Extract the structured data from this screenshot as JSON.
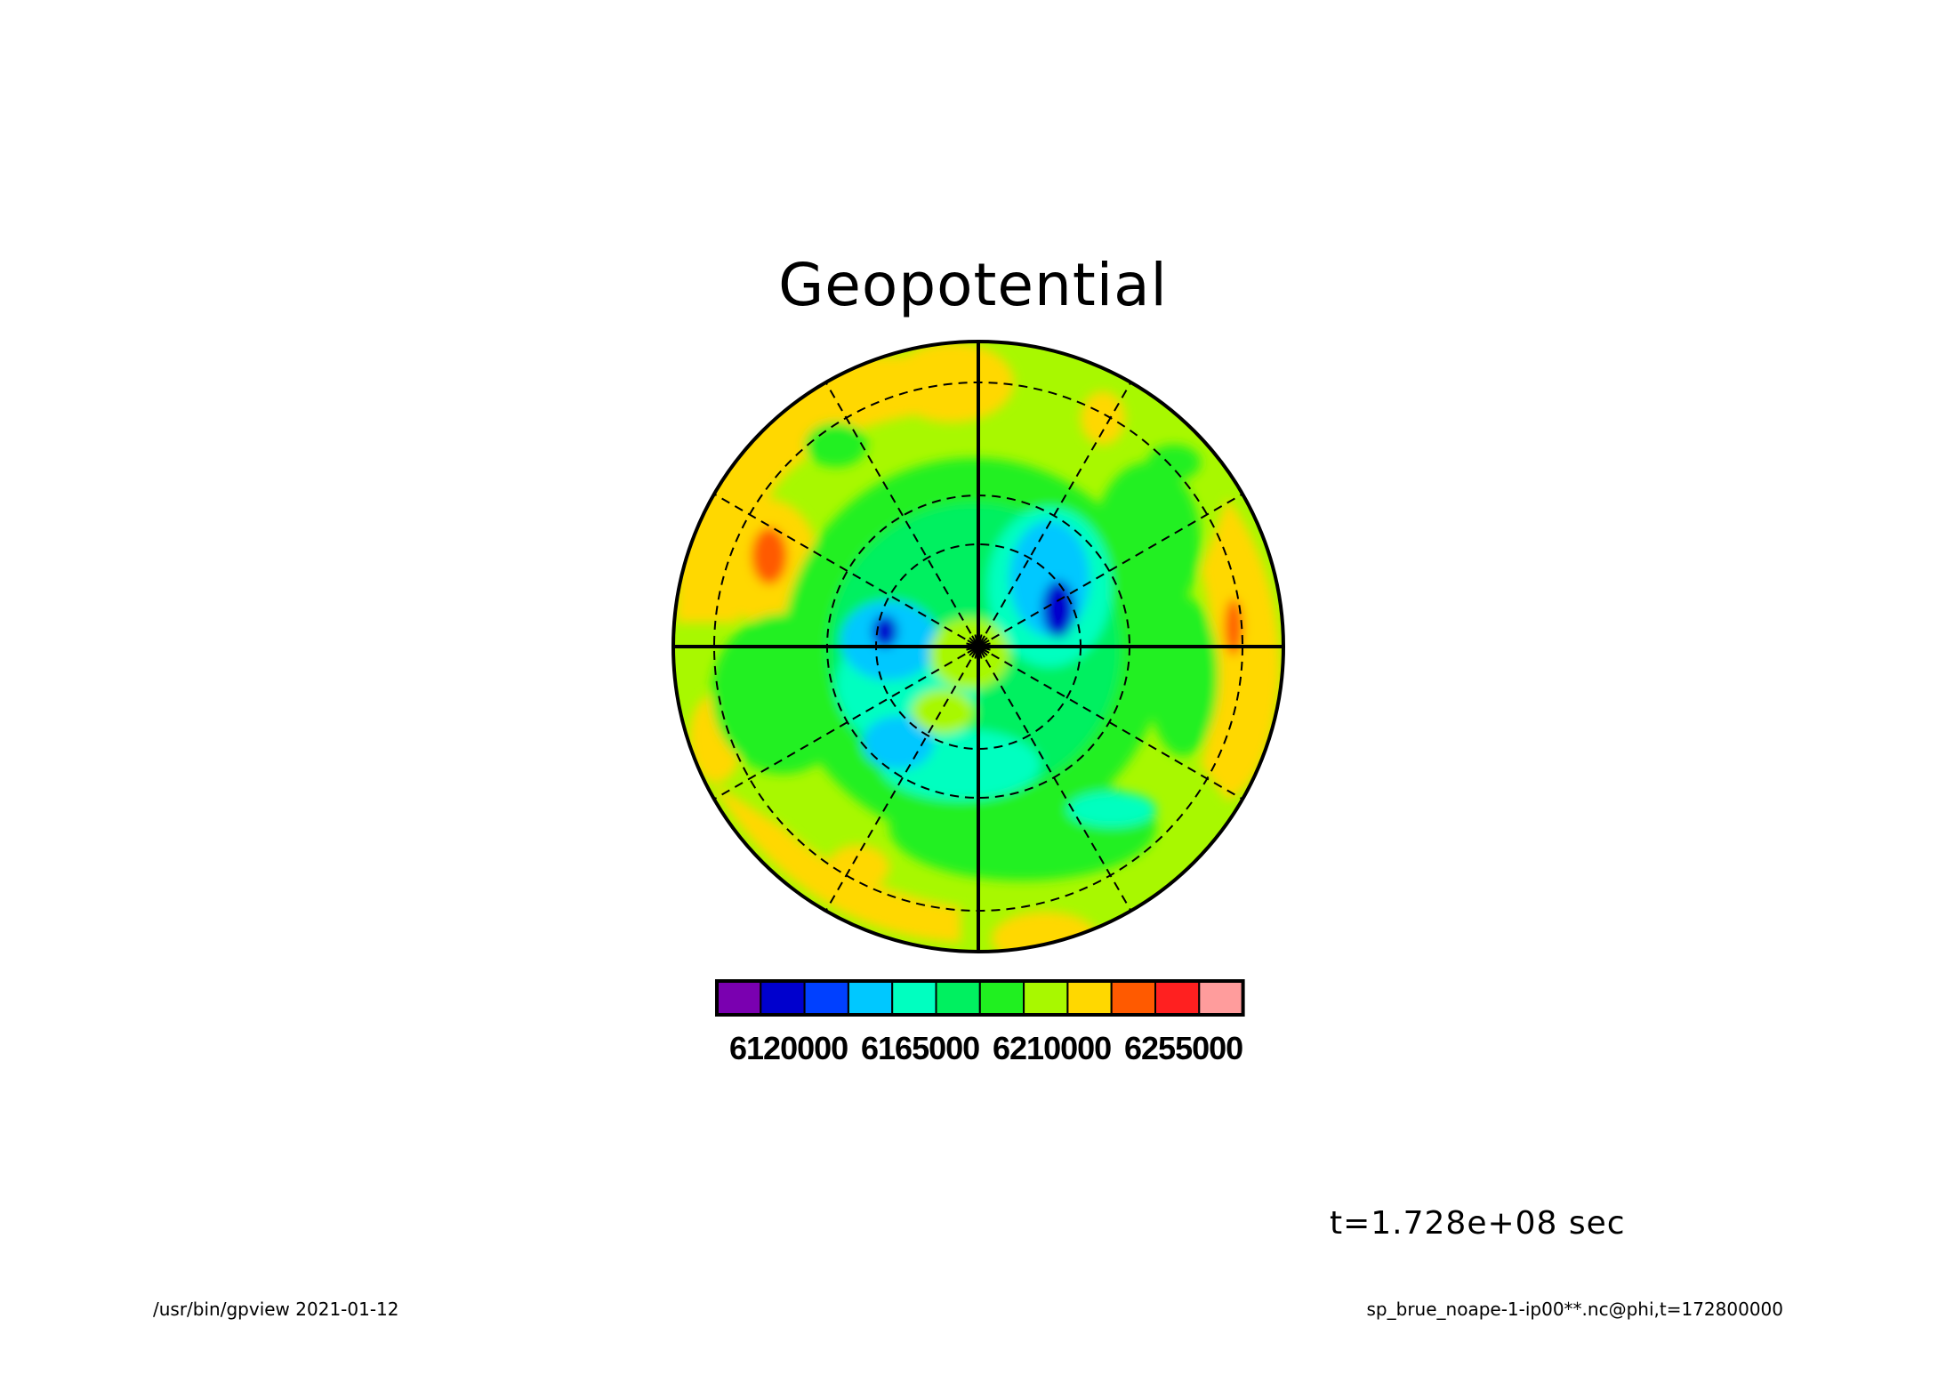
{
  "title": "Geopotential",
  "time_label": "t=1.728e+08 sec",
  "footer_left": "/usr/bin/gpview  2021-01-12",
  "footer_right": "sp_brue_noape-1-ip00**.nc@phi,t=172800000",
  "colorbar": {
    "colors": [
      "#7a00b0",
      "#0000cd",
      "#0040ff",
      "#00c8ff",
      "#00ffc0",
      "#00f060",
      "#20f020",
      "#a8f800",
      "#ffd800",
      "#ff5a00",
      "#ff2020",
      "#ff9c9c"
    ],
    "labels": [
      "6120000",
      "6165000",
      "6210000",
      "6255000"
    ]
  },
  "chart_data": {
    "type": "heatmap",
    "projection": "polar stereographic",
    "title": "Geopotential",
    "levels": [
      6120000,
      6165000,
      6210000,
      6255000
    ],
    "level_step": 15000,
    "grid": true
  }
}
